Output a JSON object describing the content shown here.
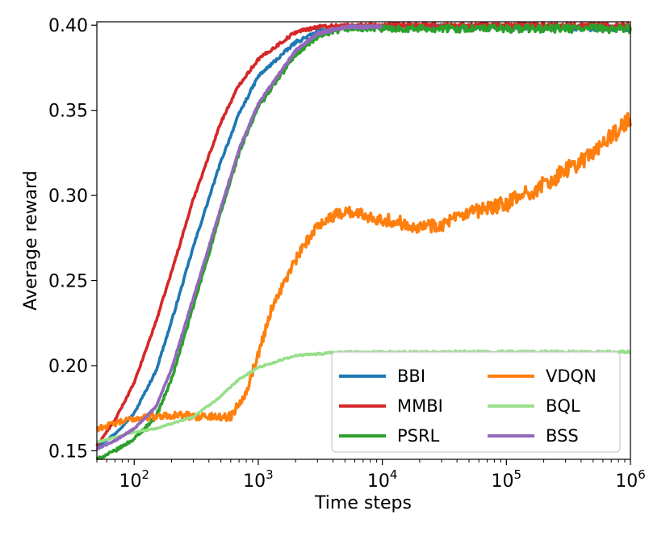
{
  "chart_data": {
    "type": "line",
    "title": "",
    "xlabel": "Time steps",
    "ylabel": "Average reward",
    "xscale": "log",
    "xlim": [
      50,
      1000000
    ],
    "ylim": [
      0.145,
      0.402
    ],
    "xticks": [
      {
        "value": 100,
        "base": "10",
        "exp": "2"
      },
      {
        "value": 1000,
        "base": "10",
        "exp": "3"
      },
      {
        "value": 10000,
        "base": "10",
        "exp": "4"
      },
      {
        "value": 100000,
        "base": "10",
        "exp": "5"
      },
      {
        "value": 1000000,
        "base": "10",
        "exp": "6"
      }
    ],
    "yticks": [
      {
        "value": 0.15,
        "label": "0.15"
      },
      {
        "value": 0.2,
        "label": "0.20"
      },
      {
        "value": 0.25,
        "label": "0.25"
      },
      {
        "value": 0.3,
        "label": "0.30"
      },
      {
        "value": 0.35,
        "label": "0.35"
      },
      {
        "value": 0.4,
        "label": "0.40"
      }
    ],
    "legend_position": "lower-right",
    "series": [
      {
        "name": "BBI",
        "color": "#1f77b4",
        "noise": 0.0008,
        "x": [
          50,
          70,
          100,
          150,
          200,
          300,
          500,
          700,
          1000,
          2000,
          3000,
          5000,
          10000,
          100000,
          1000000
        ],
        "y": [
          0.152,
          0.16,
          0.172,
          0.197,
          0.226,
          0.27,
          0.32,
          0.348,
          0.37,
          0.39,
          0.396,
          0.399,
          0.399,
          0.399,
          0.398
        ]
      },
      {
        "name": "MMBI",
        "color": "#d62728",
        "noise": 0.0008,
        "x": [
          50,
          70,
          100,
          150,
          200,
          300,
          500,
          700,
          1000,
          2000,
          3000,
          5000,
          10000,
          100000,
          1000000
        ],
        "y": [
          0.153,
          0.168,
          0.19,
          0.226,
          0.255,
          0.298,
          0.343,
          0.365,
          0.38,
          0.396,
          0.399,
          0.4,
          0.4,
          0.4,
          0.4
        ]
      },
      {
        "name": "PSRL",
        "color": "#2ca02c",
        "noise": 0.0012,
        "x": [
          50,
          70,
          100,
          150,
          200,
          300,
          500,
          700,
          1000,
          2000,
          3000,
          5000,
          10000,
          100000,
          1000000
        ],
        "y": [
          0.145,
          0.15,
          0.157,
          0.17,
          0.192,
          0.235,
          0.29,
          0.325,
          0.352,
          0.383,
          0.393,
          0.398,
          0.398,
          0.398,
          0.398
        ]
      },
      {
        "name": "BSS",
        "color": "#9467bd",
        "noise": 0.0006,
        "x": [
          50,
          70,
          100,
          150,
          200,
          300,
          500,
          700,
          1000,
          2000,
          3000,
          5000,
          10000
        ],
        "y": [
          0.151,
          0.156,
          0.163,
          0.176,
          0.198,
          0.24,
          0.293,
          0.327,
          0.354,
          0.385,
          0.395,
          0.399,
          0.399
        ]
      },
      {
        "name": "VDQN",
        "color": "#ff7f0e",
        "noise": 0.0025,
        "x": [
          50,
          70,
          100,
          200,
          400,
          600,
          800,
          1000,
          1300,
          2000,
          3000,
          5000,
          10000,
          20000,
          30000,
          50000,
          100000,
          200000,
          500000,
          1000000
        ],
        "y": [
          0.163,
          0.166,
          0.169,
          0.171,
          0.17,
          0.17,
          0.185,
          0.207,
          0.235,
          0.262,
          0.283,
          0.291,
          0.286,
          0.282,
          0.283,
          0.289,
          0.295,
          0.306,
          0.325,
          0.345
        ]
      },
      {
        "name": "BQL",
        "color": "#98df8a",
        "noise": 0.0004,
        "x": [
          50,
          100,
          150,
          200,
          300,
          500,
          700,
          1000,
          2000,
          5000,
          10000,
          100000,
          1000000
        ],
        "y": [
          0.155,
          0.161,
          0.163,
          0.166,
          0.17,
          0.182,
          0.192,
          0.199,
          0.206,
          0.208,
          0.208,
          0.208,
          0.208
        ]
      }
    ]
  }
}
